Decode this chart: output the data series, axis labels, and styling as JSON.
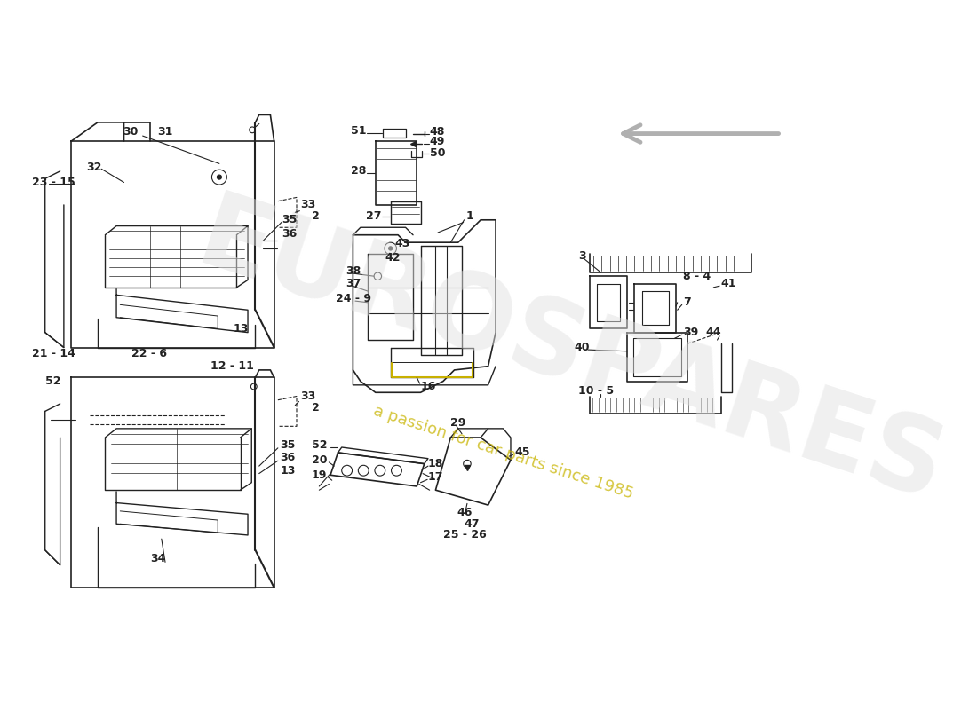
{
  "bg_color": "#ffffff",
  "line_color": "#222222",
  "wm1_text": "EUROSPARES",
  "wm2_text": "a passion for car parts since 1985",
  "arrow_color": "#bbbbbb",
  "label_color": "#111111",
  "yellow_color": "#c8b400"
}
